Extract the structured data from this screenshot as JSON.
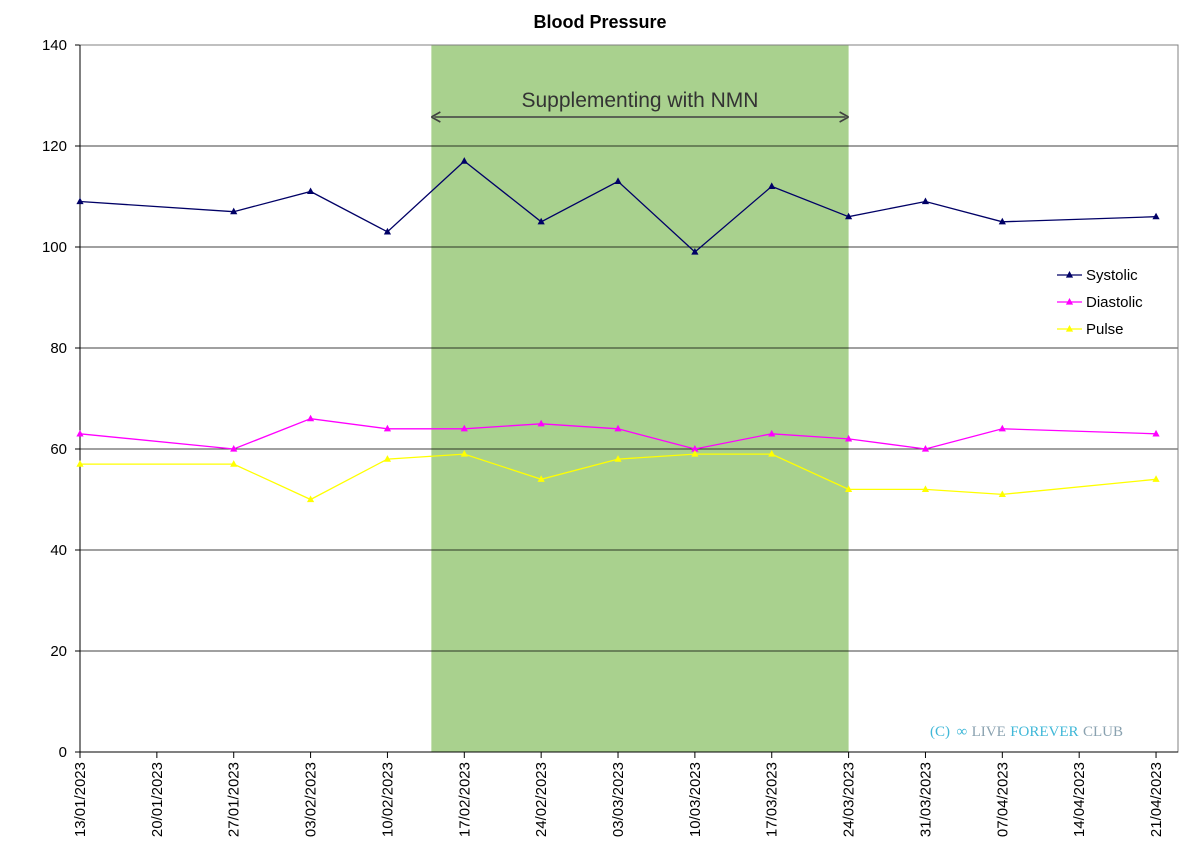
{
  "chart_data": {
    "type": "line",
    "title": "Blood Pressure",
    "xlabel": "",
    "ylabel": "",
    "ylim": [
      0,
      140
    ],
    "yticks": [
      "0",
      "20",
      "40",
      "60",
      "80",
      "100",
      "120",
      "140"
    ],
    "x_tick_labels": [
      "13/01/2023",
      "20/01/2023",
      "27/01/2023",
      "03/02/2023",
      "10/02/2023",
      "17/02/2023",
      "24/02/2023",
      "03/03/2023",
      "10/03/2023",
      "17/03/2023",
      "24/03/2023",
      "31/03/2023",
      "07/04/2023",
      "14/04/2023",
      "21/04/2023"
    ],
    "x": [
      "2023-01-13",
      "2023-01-27",
      "2023-02-03",
      "2023-02-10",
      "2023-02-17",
      "2023-02-24",
      "2023-03-03",
      "2023-03-10",
      "2023-03-17",
      "2023-03-24",
      "2023-03-31",
      "2023-04-07",
      "2023-04-21"
    ],
    "series": [
      {
        "name": "Systolic",
        "color": "#000066",
        "values": [
          109,
          107,
          111,
          103,
          117,
          105,
          113,
          99,
          112,
          106,
          109,
          105,
          106
        ]
      },
      {
        "name": "Diastolic",
        "color": "#ff00ff",
        "values": [
          63,
          60,
          66,
          64,
          64,
          65,
          64,
          60,
          63,
          62,
          60,
          64,
          63
        ]
      },
      {
        "name": "Pulse",
        "color": "#ffff00",
        "values": [
          57,
          57,
          50,
          58,
          59,
          54,
          58,
          59,
          59,
          52,
          52,
          51,
          54
        ]
      }
    ],
    "shaded_region": {
      "x_start": "2023-02-14",
      "x_end": "2023-03-24",
      "color": "#a9d18e",
      "label": "Supplementing with NMN"
    },
    "legend_position": "right",
    "grid": "horizontal",
    "watermark": {
      "prefix": "(C)",
      "part1": "LIVE",
      "part2": "FOREVER",
      "part3": "CLUB"
    }
  }
}
